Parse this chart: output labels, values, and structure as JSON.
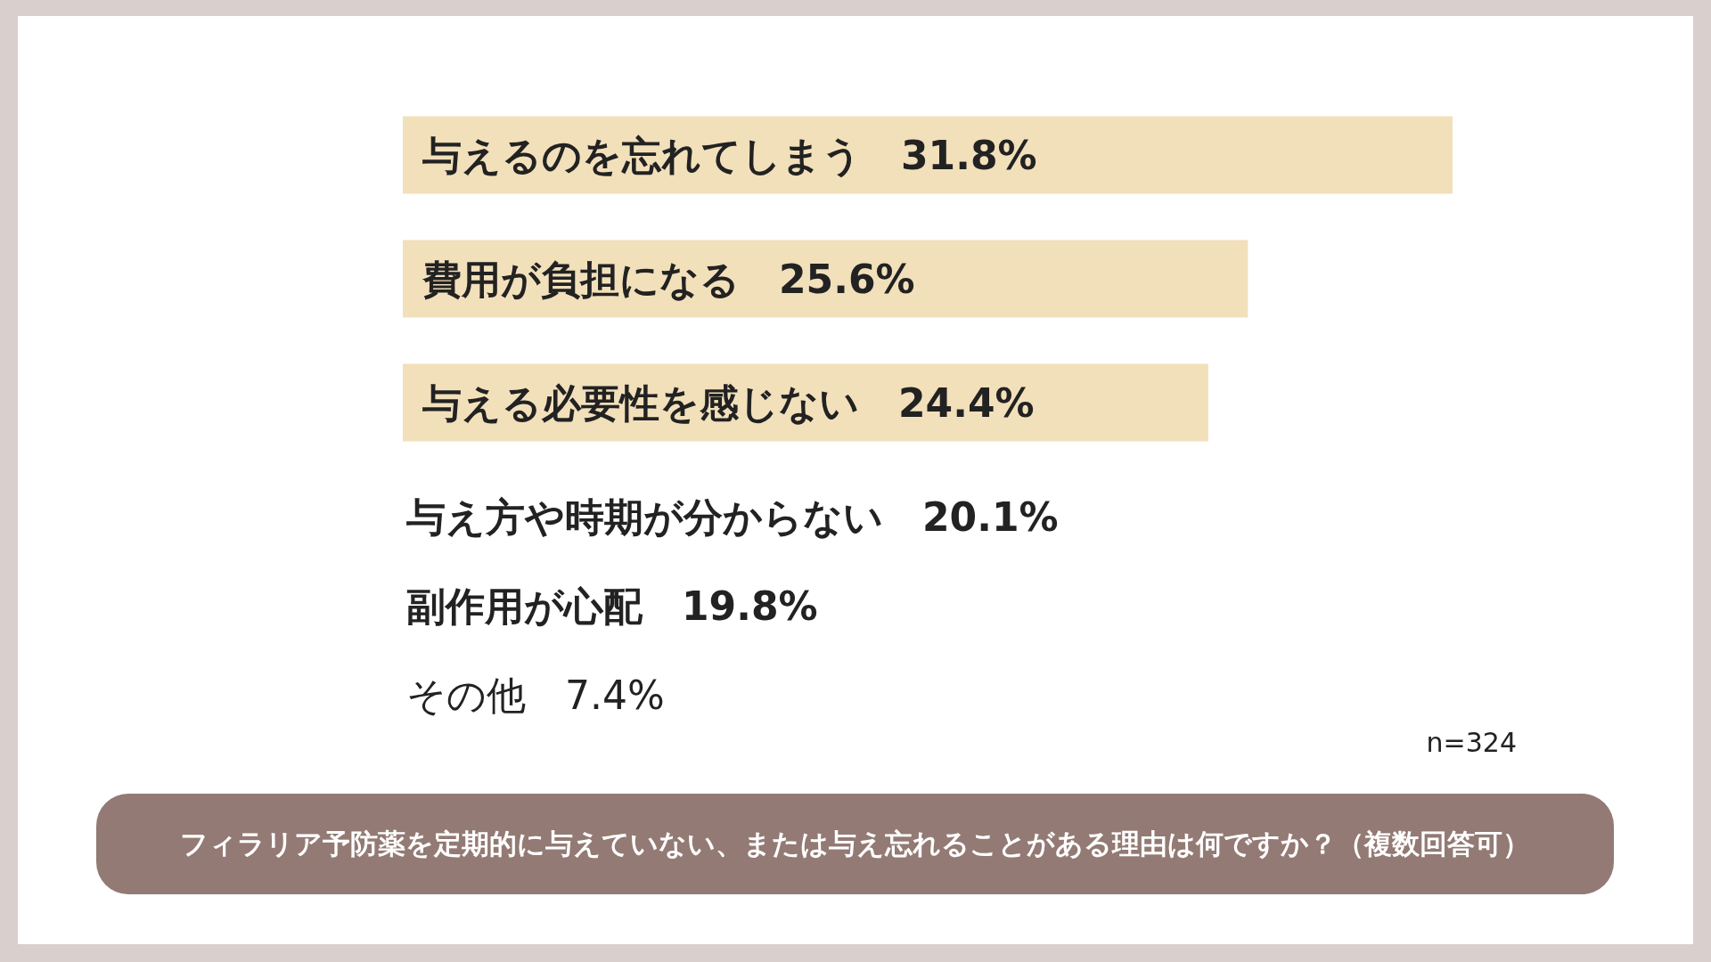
{
  "chart_data": [
    {
      "type": "bar",
      "orientation": "horizontal",
      "title": "フィラリア予防薬を定期的に与えていない、または与え忘れることがある理由は何ですか？（複数回答可）",
      "categories": [
        "与えるのを忘れてしまう",
        "費用が負担になる",
        "与える必要性を感じない"
      ],
      "values": [
        31.8,
        25.6,
        24.4
      ],
      "colors": [
        "#f2e0bb",
        "#f2e0bb",
        "#f2e0bb"
      ],
      "value_labels": [
        "31.8%",
        "25.6%",
        "24.4%"
      ],
      "annotations": [
        "n=324"
      ]
    },
    {
      "type": "other",
      "annotations": [
        "与え方や時期が分からない　20.1%",
        "副作用が心配　19.8%",
        "その他　7.4%"
      ]
    }
  ]
}
